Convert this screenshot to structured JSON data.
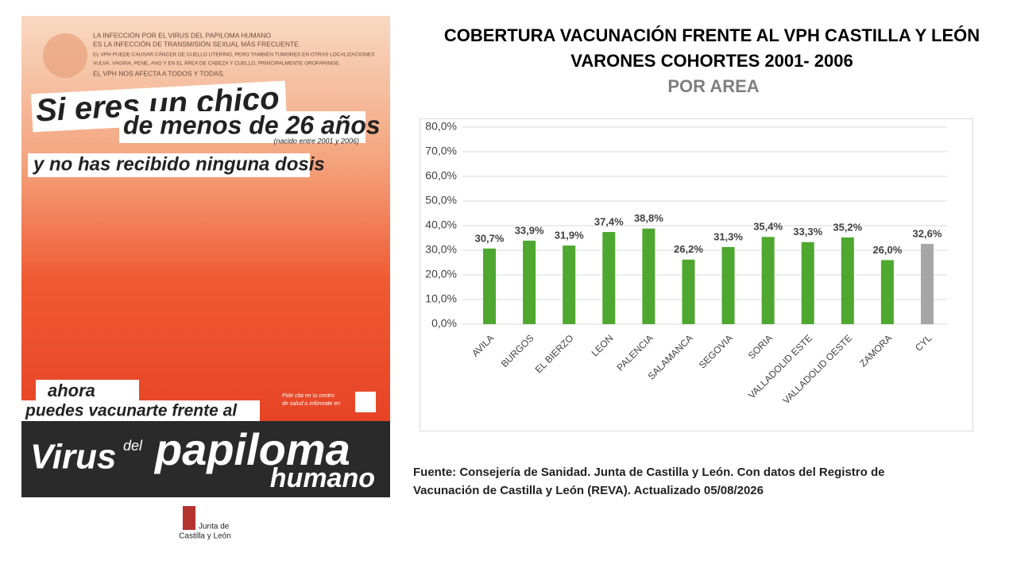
{
  "poster": {
    "info_lines": [
      "LA INFECCIÓN POR EL VIRUS DEL PAPILOMA HUMANO",
      "ES LA INFECCIÓN DE TRANSMISIÓN SEXUAL MÁS FRECUENTE.",
      "EL VPH PUEDE CAUSAR CÁNCER DE CUELLO UTERINO, PERO TAMBIÉN TUMORES EN OTRAS LOCALIZACIONES",
      "VULVA, VAGINA, PENE, ANO Y EN EL ÁREA DE CABEZA Y CUELLO, PRINCIPALMENTE OROFARINGE.",
      "EL VPH NOS AFECTA A TODOS Y TODAS."
    ],
    "headline_1": "Si eres un chico",
    "headline_2": "de menos de 26 años",
    "headline_note": "(nacido entre 2001 y 2006)",
    "headline_3": "y no has recibido ninguna dosis",
    "call_1": "ahora",
    "call_2": "puedes vacunarte frente al",
    "brand_1": "Virus",
    "brand_2": "del",
    "brand_3": "papiloma",
    "brand_4": "humano",
    "appointment": [
      "Pide cita en tu centro",
      "de salud o infórmate en"
    ]
  },
  "logo": [
    "Junta de",
    "Castilla y León"
  ],
  "chart_data": {
    "type": "bar",
    "title_lines": [
      "COBERTURA VACUNACIÓN FRENTE AL VPH CASTILLA Y LEÓN",
      "VARONES COHORTES 2001- 2006"
    ],
    "subtitle": "POR AREA",
    "categories": [
      "AVILA",
      "BURGOS",
      "EL BIERZO",
      "LEON",
      "PALENCIA",
      "SALAMANCA",
      "SEGOVIA",
      "SORIA",
      "VALLADOLID ESTE",
      "VALLADOLID OESTE",
      "ZAMORA",
      "CYL"
    ],
    "values": [
      30.7,
      33.9,
      31.9,
      37.4,
      38.8,
      26.2,
      31.3,
      35.4,
      33.3,
      35.2,
      26.0,
      32.6
    ],
    "value_labels": [
      "30,7%",
      "33,9%",
      "31,9%",
      "37,4%",
      "38,8%",
      "26,2%",
      "31,3%",
      "35,4%",
      "33,3%",
      "35,2%",
      "26,0%",
      "32,6%"
    ],
    "colors": [
      "#4ea72e",
      "#4ea72e",
      "#4ea72e",
      "#4ea72e",
      "#4ea72e",
      "#4ea72e",
      "#4ea72e",
      "#4ea72e",
      "#4ea72e",
      "#4ea72e",
      "#4ea72e",
      "#a6a6a6"
    ],
    "ylim": [
      0,
      80
    ],
    "yticks": [
      {
        "value": 0,
        "label": "0,0%"
      },
      {
        "value": 10,
        "label": "10,0%"
      },
      {
        "value": 20,
        "label": "20,0%"
      },
      {
        "value": 30,
        "label": "30,0%"
      },
      {
        "value": 40,
        "label": "40,0%"
      },
      {
        "value": 50,
        "label": "50,0%"
      },
      {
        "value": 60,
        "label": "60,0%"
      },
      {
        "value": 70,
        "label": "70,0%"
      },
      {
        "value": 80,
        "label": "80,0%"
      }
    ],
    "grid": true
  },
  "source_lines": [
    "Fuente: Consejería de Sanidad. Junta de Castilla y León. Con datos del Registro de",
    "Vacunación de Castilla y León (REVA). Actualizado 05/08/2026"
  ]
}
